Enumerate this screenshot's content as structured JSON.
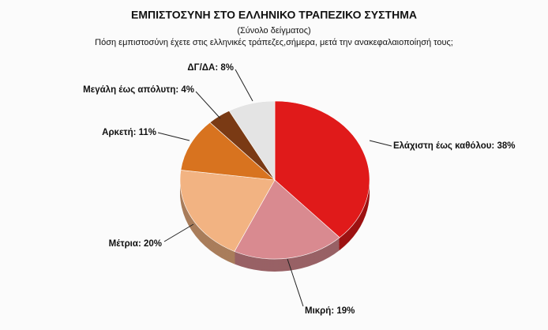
{
  "chart_data": {
    "type": "pie",
    "title": "ΕΜΠΙΣΤΟΣΥΝΗ ΣΤΟ  ΕΛΛΗΝΙΚΟ ΤΡΑΠΕΖΙΚΟ ΣΥΣΤΗΜΑ",
    "subtitle": "(Σύνολο δείγματος)",
    "question": "Πόση εμπιστοσύνη έχετε στις ελληνικές τράπεζες,σήμερα, μετά την ανακεφαλαιοποίησή τους;",
    "values": [
      38,
      19,
      20,
      11,
      4,
      8
    ],
    "value_labels": [
      "Ελάχιστη έως καθόλου: 38%",
      "Μικρή: 19%",
      "Μέτρια: 20%",
      "Αρκετή: 11%",
      "Μεγάλη έως απόλυτη: 4%",
      "ΔΓ/ΔΑ: 8%"
    ],
    "colors": [
      "#e01a1a",
      "#d98a90",
      "#f2b382",
      "#d8731f",
      "#7a3a14",
      "#e4e4e4"
    ]
  }
}
